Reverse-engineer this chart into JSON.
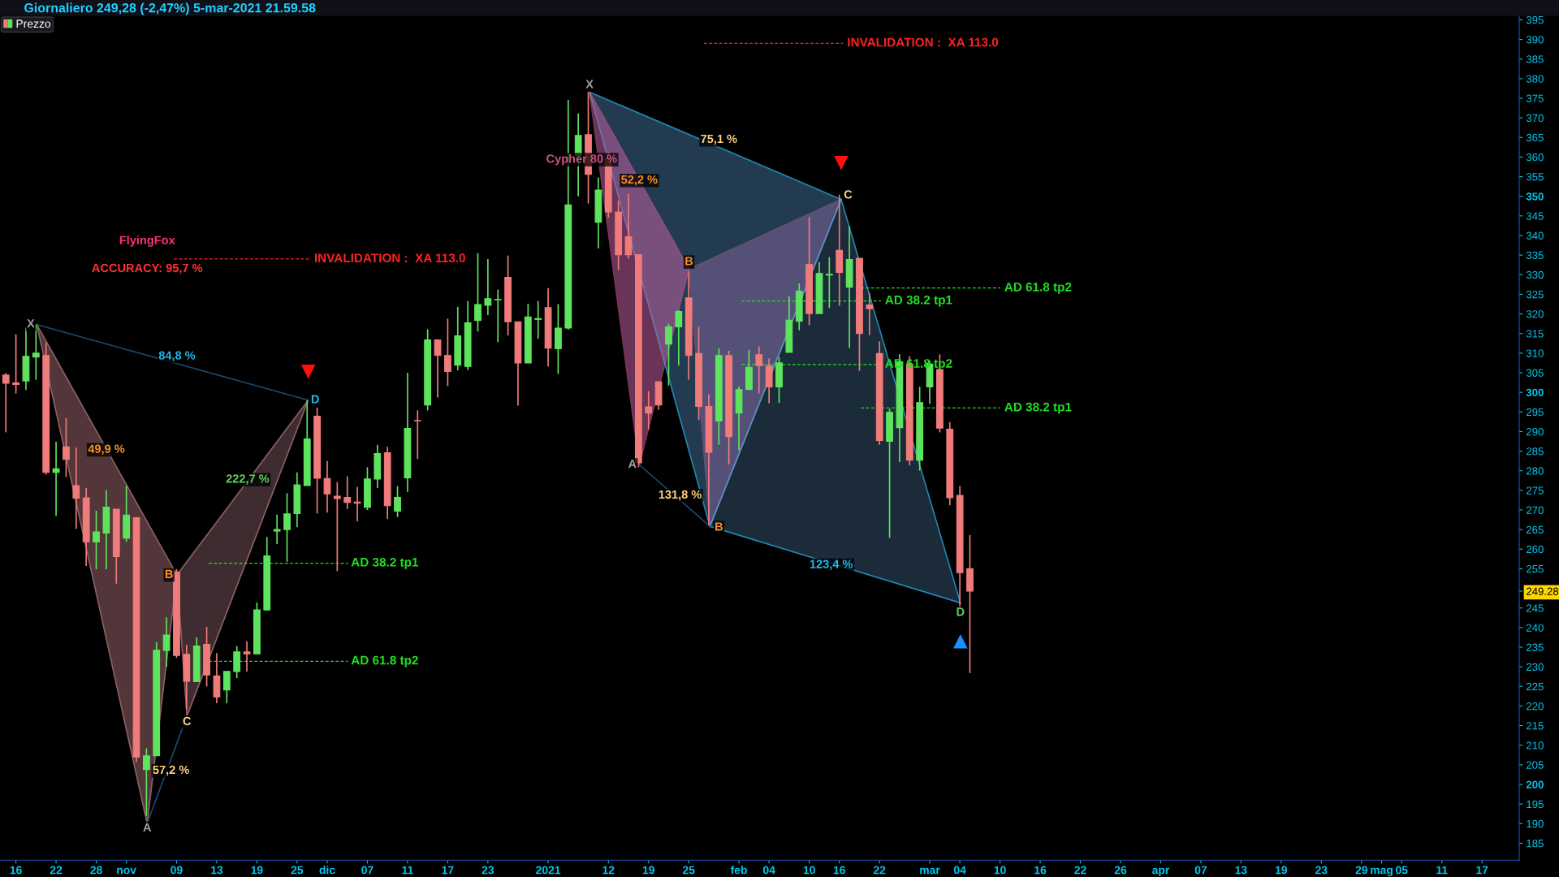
{
  "chart_data": {
    "type": "candlestick",
    "title": "Giornaliero 249,28 (-2,47%) 5-mar-2021 21.59.58",
    "categories": [
      null,
      "16",
      null,
      null,
      null,
      "22",
      null,
      null,
      null,
      "28",
      null,
      null,
      "nov",
      null,
      null,
      null,
      null,
      "09",
      null,
      null,
      null,
      "13",
      null,
      null,
      null,
      "19",
      null,
      null,
      null,
      "25",
      null,
      null,
      "dic",
      null,
      null,
      null,
      "07",
      null,
      null,
      null,
      "11",
      null,
      null,
      null,
      "17",
      null,
      null,
      null,
      "23",
      null,
      null,
      null,
      null,
      null,
      "2021",
      null,
      null,
      null,
      null,
      null,
      "12",
      null,
      null,
      null,
      "19",
      null,
      null,
      null,
      "25",
      null,
      null,
      null,
      null,
      "feb",
      null,
      null,
      "04",
      null,
      null,
      null,
      "10",
      null,
      null,
      "16",
      null,
      null,
      null,
      "22",
      null,
      null,
      null,
      null,
      "mar",
      null,
      null,
      "04",
      null,
      null,
      null,
      "10",
      null,
      null,
      null,
      "16",
      null,
      null,
      null,
      "22",
      null,
      null,
      null,
      "26",
      null,
      null,
      null,
      "apr",
      null,
      null,
      null,
      "07",
      null,
      null,
      null,
      "13",
      null,
      null,
      null,
      "19",
      null,
      null,
      null,
      "23",
      null,
      null,
      null,
      "29",
      null,
      "mag",
      null,
      "05",
      null,
      null,
      null,
      "11",
      null,
      null,
      null,
      "17",
      null,
      null,
      null
    ],
    "series": [
      {
        "name": "Prezzo",
        "colors": [
          "#f07b7b",
          "#f07b7b",
          "#5ee35e",
          "#5ee35e",
          "#f07b7b",
          "#5ee35e",
          "#f07b7b",
          "#f07b7b",
          "#f07b7b",
          "#5ee35e",
          "#5ee35e",
          "#f07b7b",
          "#5ee35e",
          "#f07b7b",
          "#5ee35e",
          "#5ee35e",
          "#5ee35e",
          "#f07b7b",
          "#f07b7b",
          "#5ee35e",
          "#f07b7b",
          "#f07b7b",
          "#5ee35e",
          "#5ee35e",
          "#f07b7b",
          "#5ee35e",
          "#5ee35e",
          "#5ee35e",
          "#5ee35e",
          "#5ee35e",
          "#5ee35e",
          "#f07b7b",
          "#f07b7b",
          "#f07b7b",
          "#f07b7b",
          "#f07b7b",
          "#5ee35e",
          "#5ee35e",
          "#f07b7b",
          "#5ee35e",
          "#5ee35e",
          "#f07b7b",
          "#5ee35e",
          "#f07b7b",
          "#f07b7b",
          "#5ee35e",
          "#5ee35e",
          "#5ee35e",
          "#5ee35e",
          "#5ee35e",
          "#f07b7b",
          "#f07b7b",
          "#5ee35e",
          "#5ee35e",
          "#f07b7b",
          "#5ee35e",
          "#5ee35e",
          "#5ee35e",
          "#f07b7b",
          "#5ee35e",
          "#f07b7b",
          "#f07b7b",
          "#f07b7b",
          "#f07b7b",
          "#f07b7b",
          "#f07b7b",
          "#5ee35e",
          "#5ee35e",
          "#f07b7b",
          "#f07b7b",
          "#f07b7b",
          "#5ee35e",
          "#f07b7b",
          "#5ee35e",
          "#5ee35e",
          "#f07b7b",
          "#f07b7b",
          "#5ee35e",
          "#5ee35e",
          "#5ee35e",
          "#f07b7b",
          "#5ee35e",
          "#5ee35e",
          "#f07b7b",
          "#5ee35e",
          "#f07b7b",
          "#f07b7b",
          "#f07b7b",
          "#5ee35e",
          "#5ee35e",
          "#f07b7b",
          "#5ee35e",
          "#5ee35e",
          "#f07b7b",
          "#f07b7b",
          "#f07b7b",
          "#f07b7b",
          null,
          null,
          null,
          null,
          null,
          null,
          null,
          null,
          null,
          null,
          null,
          null,
          null,
          null,
          null,
          null,
          null,
          null,
          null,
          null,
          null,
          null,
          null,
          null,
          null,
          null,
          null,
          null,
          null,
          null,
          null,
          null,
          null,
          null,
          null,
          null,
          null,
          null,
          null,
          null,
          null,
          null,
          null,
          null,
          null,
          null,
          null,
          null,
          null,
          null,
          null,
          null,
          null,
          null
        ],
        "ohlc": [
          [
            304.4,
            304.9,
            289.8,
            302.3
          ],
          [
            302.4,
            314.8,
            299.7,
            302.0
          ],
          [
            302.9,
            316.5,
            300.6,
            309.2
          ],
          [
            309.0,
            317.4,
            303.2,
            310.0
          ],
          [
            309.4,
            312.6,
            279.0,
            279.6
          ],
          [
            279.6,
            287.4,
            268.5,
            280.5
          ],
          [
            286.1,
            293.4,
            278.4,
            282.9
          ],
          [
            276.2,
            285.9,
            265.2,
            273.0
          ],
          [
            273.1,
            275.6,
            255.7,
            261.9
          ],
          [
            261.9,
            269.8,
            254.9,
            264.4
          ],
          [
            264.1,
            275.0,
            254.9,
            270.7
          ],
          [
            270.2,
            270.2,
            251.2,
            258.1
          ],
          [
            262.8,
            276.2,
            261.9,
            268.7
          ],
          [
            268.0,
            268.0,
            205.7,
            207.0
          ],
          [
            203.8,
            209.2,
            192.0,
            207.3
          ],
          [
            207.3,
            236.3,
            207.3,
            234.2
          ],
          [
            234.2,
            242.6,
            230.0,
            238.1
          ],
          [
            254.2,
            254.9,
            232.3,
            232.9
          ],
          [
            233.2,
            235.6,
            219.1,
            226.3
          ],
          [
            226.2,
            237.5,
            226.2,
            235.3
          ],
          [
            235.7,
            240.2,
            225.0,
            227.9
          ],
          [
            227.7,
            233.5,
            220.7,
            222.3
          ],
          [
            224.1,
            228.8,
            220.7,
            228.8
          ],
          [
            228.8,
            235.3,
            227.1,
            233.8
          ],
          [
            233.8,
            236.5,
            228.8,
            233.3
          ],
          [
            233.3,
            246.4,
            233.3,
            244.5
          ],
          [
            244.5,
            263.1,
            244.5,
            258.3
          ],
          [
            264.6,
            268.8,
            261.3,
            265.0
          ],
          [
            265.0,
            274.3,
            256.8,
            269.0
          ],
          [
            269.1,
            279.6,
            265.6,
            276.4
          ],
          [
            276.2,
            298.0,
            276.2,
            288.1
          ],
          [
            293.9,
            296.1,
            269.1,
            278.1
          ],
          [
            278.0,
            282.5,
            269.3,
            274.1
          ],
          [
            273.5,
            277.1,
            254.4,
            272.9
          ],
          [
            273.2,
            278.6,
            270.2,
            271.9
          ],
          [
            272.0,
            275.9,
            267.1,
            271.7
          ],
          [
            270.7,
            280.9,
            270.0,
            277.9
          ],
          [
            277.9,
            286.6,
            275.6,
            284.4
          ],
          [
            284.6,
            286.1,
            267.7,
            271.1
          ],
          [
            269.7,
            276.1,
            268.2,
            273.2
          ],
          [
            278.2,
            305.0,
            274.6,
            290.8
          ],
          [
            292.8,
            295.4,
            283.0,
            292.7
          ],
          [
            296.8,
            316.1,
            295.4,
            313.4
          ],
          [
            313.4,
            313.4,
            298.7,
            309.4
          ],
          [
            309.4,
            318.8,
            301.6,
            305.3
          ],
          [
            306.9,
            321.8,
            305.6,
            314.4
          ],
          [
            306.6,
            323.3,
            305.7,
            317.7
          ],
          [
            318.3,
            335.5,
            315.5,
            322.4
          ],
          [
            322.2,
            334.0,
            319.7,
            323.9
          ],
          [
            323.6,
            326.2,
            312.8,
            323.7
          ],
          [
            329.3,
            334.9,
            314.5,
            318.0
          ],
          [
            318.0,
            318.0,
            296.6,
            307.5
          ],
          [
            307.5,
            322.6,
            307.5,
            319.2
          ],
          [
            318.6,
            323.3,
            313.7,
            318.8
          ],
          [
            321.6,
            326.6,
            306.6,
            311.3
          ],
          [
            311.1,
            322.5,
            304.7,
            316.4
          ],
          [
            316.4,
            374.6,
            316.0,
            347.8
          ],
          [
            360.4,
            371.1,
            350.0,
            365.5
          ],
          [
            365.7,
            376.6,
            348.2,
            355.6
          ],
          [
            343.4,
            354.8,
            336.7,
            351.6
          ],
          [
            359.8,
            361.3,
            344.5,
            346.0
          ],
          [
            346.0,
            348.9,
            331.2,
            335.1
          ],
          [
            339.7,
            350.6,
            334.1,
            335.1
          ],
          [
            335.1,
            335.1,
            280.9,
            282.0
          ],
          [
            296.3,
            300.3,
            290.5,
            294.7
          ],
          [
            302.7,
            302.7,
            295.5,
            296.8
          ],
          [
            312.3,
            317.5,
            301.7,
            316.7
          ],
          [
            316.7,
            321.0,
            306.8,
            320.6
          ],
          [
            324.1,
            330.8,
            303.2,
            309.4
          ],
          [
            309.9,
            316.7,
            292.9,
            296.4
          ],
          [
            296.4,
            299.5,
            266.1,
            284.7
          ],
          [
            292.7,
            311.2,
            286.6,
            309.4
          ],
          [
            309.4,
            310.6,
            281.6,
            288.7
          ],
          [
            294.7,
            301.5,
            285.2,
            300.7
          ],
          [
            300.7,
            310.8,
            300.7,
            306.4
          ],
          [
            309.6,
            311.7,
            299.7,
            306.8
          ],
          [
            306.8,
            308.6,
            297.2,
            301.4
          ],
          [
            301.4,
            309.0,
            297.3,
            307.5
          ],
          [
            310.2,
            324.5,
            310.2,
            318.4
          ],
          [
            318.1,
            327.8,
            315.8,
            325.8
          ],
          [
            332.6,
            344.7,
            317.1,
            320.1
          ],
          [
            320.1,
            333.2,
            320.1,
            330.3
          ],
          [
            329.9,
            334.5,
            321.5,
            330.1
          ],
          [
            336.2,
            350.4,
            322.1,
            330.6
          ],
          [
            326.8,
            342.4,
            311.3,
            333.9
          ],
          [
            334.2,
            334.2,
            305.5,
            315.0
          ],
          [
            322.3,
            325.4,
            314.6,
            321.3
          ],
          [
            309.9,
            313.0,
            286.6,
            287.7
          ],
          [
            287.5,
            295.8,
            262.9,
            294.9
          ],
          [
            291.0,
            309.7,
            282.2,
            307.8
          ],
          [
            307.2,
            309.2,
            281.4,
            282.7
          ],
          [
            282.7,
            301.4,
            280.0,
            297.4
          ],
          [
            301.4,
            308.0,
            297.1,
            307.2
          ],
          [
            305.8,
            309.7,
            289.8,
            290.9
          ],
          [
            290.6,
            292.4,
            271.2,
            273.1
          ],
          [
            273.7,
            276.1,
            245.1,
            254.0
          ],
          [
            255.0,
            263.6,
            228.4,
            249.28
          ],
          null,
          null,
          null,
          null,
          null,
          null,
          null,
          null,
          null,
          null,
          null,
          null,
          null,
          null,
          null,
          null,
          null,
          null,
          null,
          null,
          null,
          null,
          null,
          null,
          null,
          null,
          null,
          null,
          null,
          null,
          null,
          null,
          null,
          null,
          null,
          null,
          null,
          null,
          null,
          null,
          null,
          null,
          null,
          null,
          null,
          null,
          null,
          null,
          null,
          null,
          null,
          null,
          null,
          null
        ]
      }
    ],
    "ylim": [
      180.7,
      396
    ],
    "yticks": [
      185,
      190,
      195,
      200,
      205,
      210,
      215,
      220,
      225,
      230,
      235,
      240,
      245,
      {
        "value": 249.28,
        "label": "249.28"
      },
      255,
      260,
      265,
      270,
      275,
      280,
      285,
      290,
      295,
      300,
      305,
      310,
      315,
      320,
      325,
      330,
      335,
      340,
      345,
      350,
      355,
      360,
      365,
      370,
      375,
      380,
      385,
      390,
      395
    ],
    "legend": "top left",
    "ref_lines": [
      {
        "axis": "y",
        "value": 334.0,
        "label": "INVALIDATION :  XA 113.0",
        "color": "#ff2020",
        "line_style": "dashed"
      },
      {
        "axis": "y",
        "value": 389.0,
        "label": "INVALIDATION :  XA 113.0",
        "color": "#ff2020",
        "line_style": "dashed"
      },
      {
        "axis": "y",
        "value": 256.4,
        "label": "AD 38.2 tp1",
        "color": "#20e020",
        "line_style": "dashed"
      },
      {
        "axis": "y",
        "value": 231.4,
        "label": "AD 61.8 tp2",
        "color": "#20e020",
        "line_style": "dashed"
      },
      {
        "axis": "y",
        "value": 326.6,
        "label": "AD 61.8 tp2",
        "color": "#20e020",
        "line_style": "dashed"
      },
      {
        "axis": "y",
        "value": 323.3,
        "label": "AD 38.2 tp1",
        "color": "#20e020",
        "line_style": "dashed"
      },
      {
        "axis": "y",
        "value": 307.1,
        "label": "AD 61.8 tp2",
        "color": "#20e020",
        "line_style": "dashed"
      },
      {
        "axis": "y",
        "value": 296.0,
        "label": "AD 38.2 tp1",
        "color": "#20e020",
        "line_style": "dashed"
      }
    ],
    "annotations": [
      "FlyingFox",
      "ACCURACY: 95,7 %",
      "84,8 %",
      "49,9 %",
      "222,7 %",
      "57,2 %",
      "Cypher 80 %",
      "75,1 %",
      "52,2 %",
      "131,8 %",
      "123,4 %",
      {
        "text": "X",
        "y": 317.3
      },
      "A",
      "B",
      "C",
      {
        "text": "D",
        "y": 298.0
      },
      "X",
      {
        "text": "A",
        "y": 281.5
      },
      "B",
      {
        "text": "B",
        "y": 265.8
      },
      "C",
      "D"
    ]
  }
}
